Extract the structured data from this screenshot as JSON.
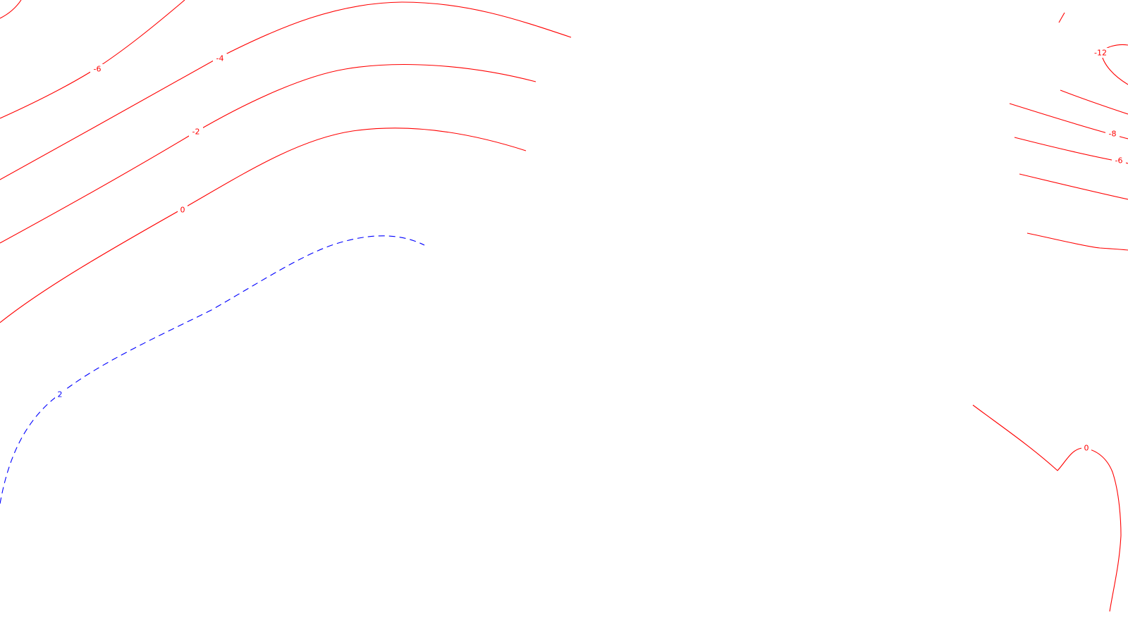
{
  "map": {
    "colors": {
      "negative": "#ff0000",
      "positive": "#0000ff",
      "background": "#ffffff"
    },
    "contour_labels": {
      "c_neg6_left": "-6",
      "c_neg4_left": "-4",
      "c_neg2_left": "-2",
      "c_zero_left": "0",
      "c_pos2_left": "2",
      "c_neg12_right": "-12",
      "c_neg8_right": "-8",
      "c_neg6_right": "-6",
      "c_zero_right": "0"
    }
  }
}
